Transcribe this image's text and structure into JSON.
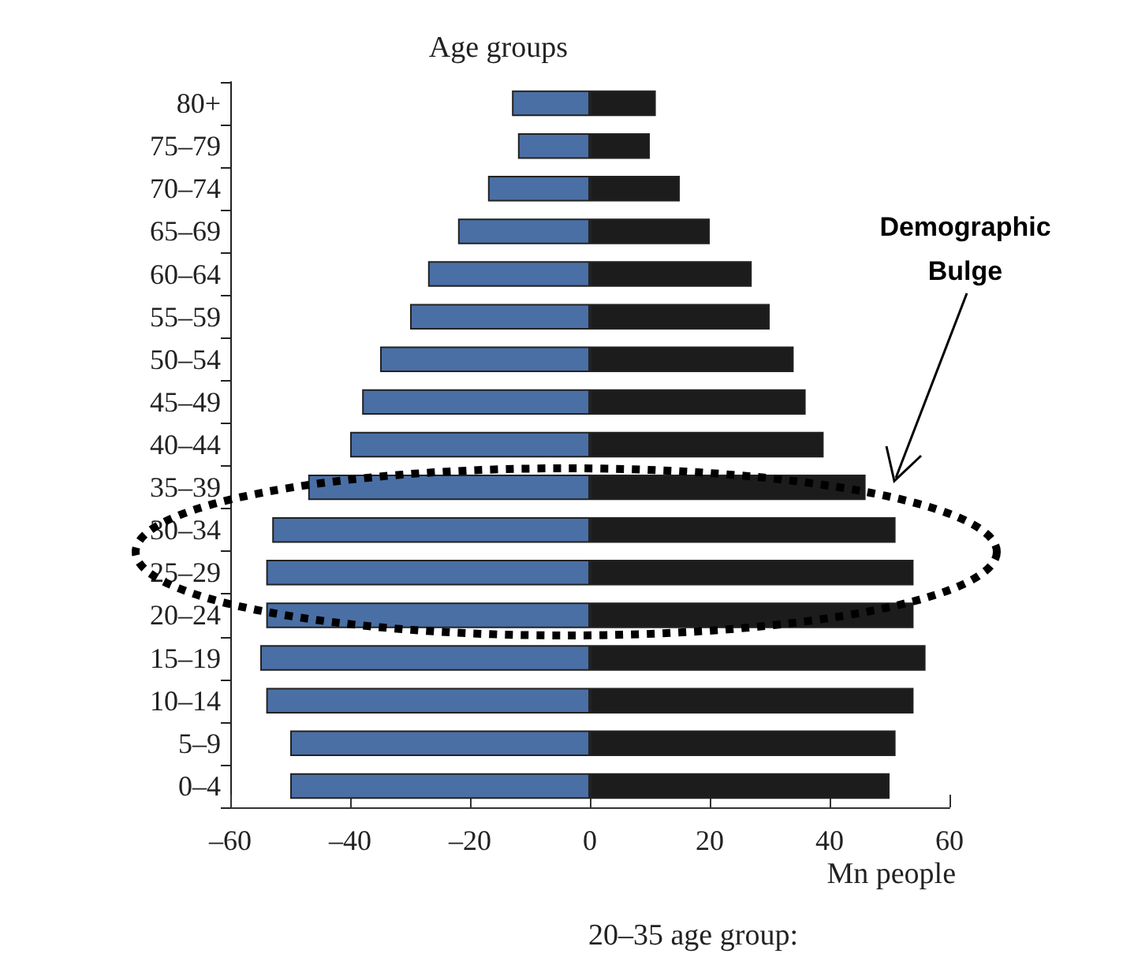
{
  "chart_data": {
    "type": "bar",
    "orientation": "horizontal",
    "ylabel": "Age groups",
    "xlabel": "Mn people",
    "categories": [
      "80+",
      "75–79",
      "70–74",
      "65–69",
      "60–64",
      "55–59",
      "50–54",
      "45–49",
      "40–44",
      "35–39",
      "30–34",
      "25–29",
      "20–24",
      "15–19",
      "10–14",
      "5–9",
      "0–4"
    ],
    "series": [
      {
        "color": "#4a6fa5",
        "values": [
          -13,
          -12,
          -17,
          -22,
          -27,
          -30,
          -35,
          -38,
          -40,
          -47,
          -53,
          -54,
          -54,
          -55,
          -54,
          -50,
          -50
        ]
      },
      {
        "color": "#1c1c1c",
        "values": [
          11,
          10,
          15,
          20,
          27,
          30,
          34,
          36,
          39,
          46,
          51,
          54,
          54,
          56,
          54,
          51,
          50
        ]
      }
    ],
    "xlim": [
      -60,
      60
    ],
    "xticks": [
      {
        "value": -60,
        "label": "–60"
      },
      {
        "value": -40,
        "label": "–40"
      },
      {
        "value": -20,
        "label": "–20"
      },
      0,
      20,
      40,
      60
    ],
    "grid": false,
    "stacked": true,
    "annotations": [
      "Demographic Bulge",
      "20–35 age group:"
    ]
  }
}
